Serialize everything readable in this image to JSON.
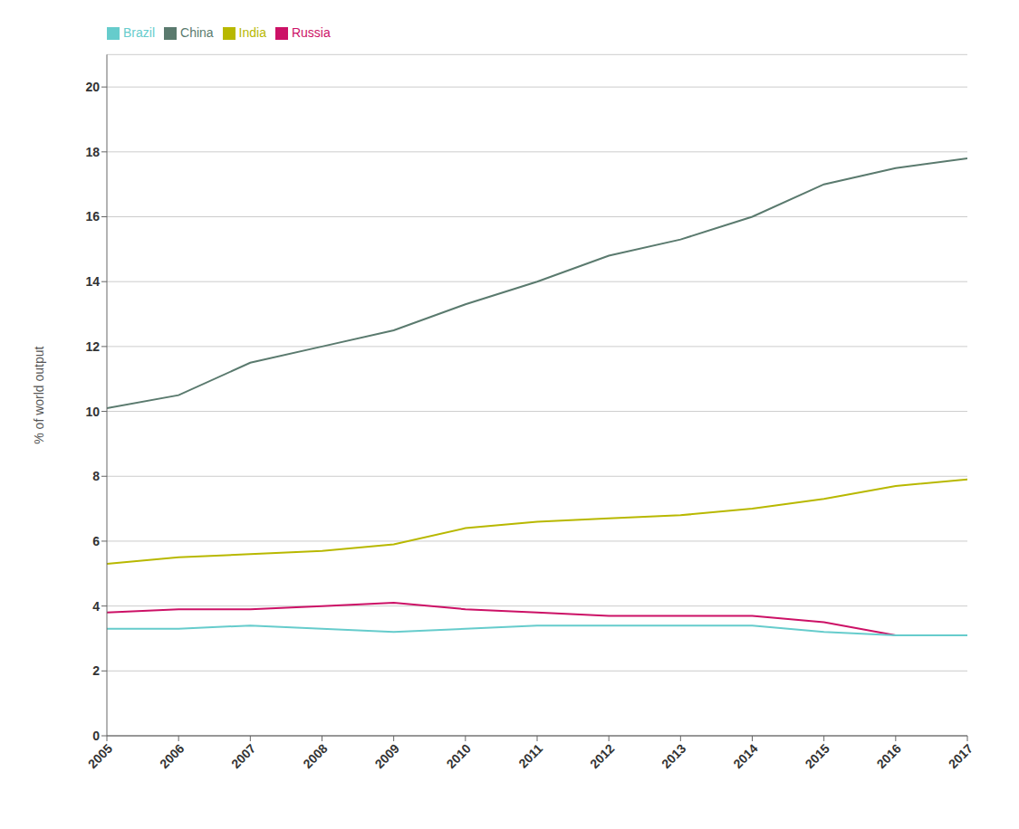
{
  "chart_data": {
    "type": "line",
    "ylabel": "% of world output",
    "x": [
      2005,
      2006,
      2007,
      2008,
      2009,
      2010,
      2011,
      2012,
      2013,
      2014,
      2015,
      2016,
      2017
    ],
    "xlim": [
      2005,
      2017
    ],
    "xticks": [
      2005,
      2006,
      2007,
      2008,
      2009,
      2010,
      2011,
      2012,
      2013,
      2014,
      2015,
      2016,
      2017
    ],
    "ylim": [
      0,
      21
    ],
    "yticks": [
      0,
      2,
      4,
      6,
      8,
      10,
      12,
      14,
      16,
      18,
      20
    ],
    "grid": "y",
    "legend": "top",
    "series": [
      {
        "name": "China",
        "color": "#5a7a6e",
        "values": [
          10.1,
          10.5,
          11.5,
          12.0,
          12.5,
          13.3,
          14.0,
          14.8,
          15.3,
          16.0,
          17.0,
          17.5,
          17.8
        ]
      },
      {
        "name": "India",
        "color": "#b8b800",
        "values": [
          5.3,
          5.5,
          5.6,
          5.7,
          5.9,
          6.4,
          6.6,
          6.7,
          6.8,
          7.0,
          7.3,
          7.7,
          7.9
        ]
      },
      {
        "name": "Russia",
        "color": "#cc1166",
        "values": [
          3.8,
          3.9,
          3.9,
          4.0,
          4.1,
          3.9,
          3.8,
          3.7,
          3.7,
          3.7,
          3.5,
          3.1,
          3.1
        ]
      },
      {
        "name": "Brazil",
        "color": "#66cccc",
        "values": [
          3.3,
          3.3,
          3.4,
          3.3,
          3.2,
          3.3,
          3.4,
          3.4,
          3.4,
          3.4,
          3.2,
          3.1,
          3.1
        ]
      }
    ]
  }
}
